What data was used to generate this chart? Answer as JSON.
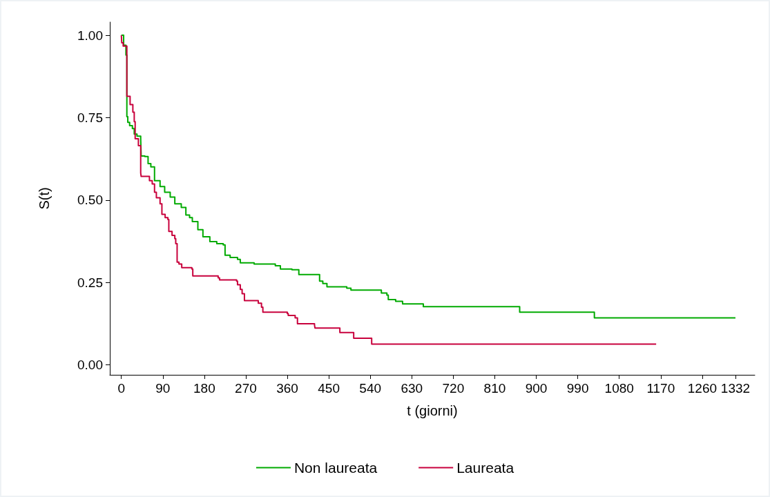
{
  "chart_data": {
    "type": "step",
    "xlabel": "t (giorni)",
    "ylabel": "S(t)",
    "xlim": [
      -25,
      1374
    ],
    "ylim": [
      -0.03,
      1.04
    ],
    "xticks": [
      0,
      90,
      180,
      270,
      360,
      450,
      540,
      630,
      720,
      810,
      900,
      990,
      1080,
      1170,
      1260,
      1332
    ],
    "yticks": [
      {
        "value": 0,
        "label": "0.00"
      },
      {
        "value": 0.25,
        "label": "0.25"
      },
      {
        "value": 0.5,
        "label": "0.50"
      },
      {
        "value": 0.75,
        "label": "0.75"
      },
      {
        "value": 1,
        "label": "1.00"
      }
    ],
    "grid": false,
    "legend": "bottom",
    "marker": "none",
    "line_style": "solid",
    "series": [
      {
        "name": "Non laureata",
        "color": "#00aa00",
        "x": [
          0,
          5,
          10,
          12,
          14,
          18,
          24,
          28,
          34,
          42,
          43,
          51,
          58,
          64,
          72,
          84,
          94,
          106,
          116,
          130,
          140,
          148,
          154,
          166,
          177,
          192,
          207,
          221,
          225,
          236,
          252,
          258,
          288,
          334,
          345,
          370,
          385,
          430,
          437,
          446,
          489,
          498,
          564,
          576,
          579,
          595,
          610,
          655,
          864,
          1026,
          1332
        ],
        "values": [
          1.0,
          0.97,
          0.94,
          0.753,
          0.736,
          0.726,
          0.717,
          0.7,
          0.694,
          0.686,
          0.634,
          0.632,
          0.611,
          0.601,
          0.559,
          0.541,
          0.524,
          0.509,
          0.489,
          0.478,
          0.455,
          0.447,
          0.435,
          0.41,
          0.389,
          0.374,
          0.368,
          0.364,
          0.333,
          0.326,
          0.32,
          0.31,
          0.306,
          0.301,
          0.291,
          0.289,
          0.274,
          0.254,
          0.247,
          0.237,
          0.233,
          0.227,
          0.218,
          0.212,
          0.198,
          0.193,
          0.185,
          0.177,
          0.16,
          0.143,
          0.143
        ]
      },
      {
        "name": "Laureata",
        "color": "#c8003c",
        "x": [
          0,
          1,
          4,
          12,
          19,
          25,
          28,
          30,
          37,
          42,
          43,
          61,
          67,
          72,
          76,
          84,
          88,
          95,
          101,
          103,
          110,
          116,
          118,
          121,
          125,
          131,
          153,
          155,
          210,
          213,
          250,
          252,
          258,
          262,
          267,
          297,
          304,
          307,
          360,
          362,
          377,
          382,
          419,
          420,
          474,
          504,
          543,
          1160
        ],
        "values": [
          1.0,
          0.977,
          0.967,
          0.815,
          0.79,
          0.767,
          0.738,
          0.686,
          0.665,
          0.582,
          0.572,
          0.559,
          0.549,
          0.524,
          0.507,
          0.489,
          0.457,
          0.447,
          0.441,
          0.405,
          0.393,
          0.383,
          0.368,
          0.312,
          0.306,
          0.295,
          0.291,
          0.27,
          0.264,
          0.258,
          0.254,
          0.243,
          0.229,
          0.216,
          0.195,
          0.187,
          0.175,
          0.16,
          0.156,
          0.15,
          0.143,
          0.125,
          0.121,
          0.112,
          0.098,
          0.081,
          0.063,
          0.063
        ]
      }
    ]
  }
}
